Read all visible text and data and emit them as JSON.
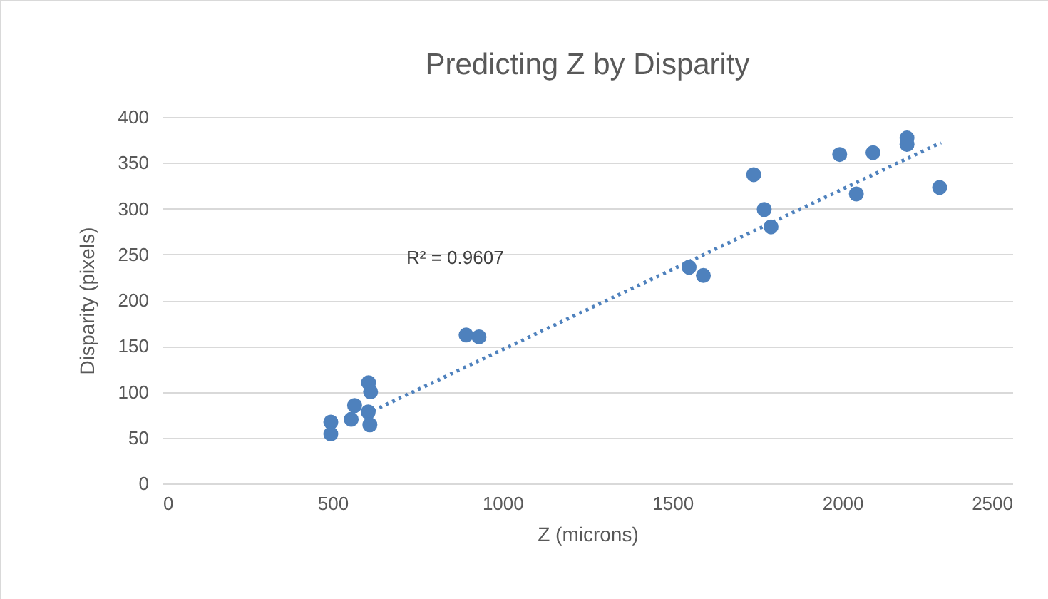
{
  "chart_data": {
    "type": "scatter",
    "title": "Predicting Z by Disparity",
    "xlabel": "Z (microns)",
    "ylabel": "Disparity (pixels)",
    "xlim": [
      0,
      2500
    ],
    "xticks": [
      0,
      500,
      1000,
      1500,
      2000,
      2500
    ],
    "ylim": [
      0,
      400
    ],
    "yticks": [
      0,
      50,
      100,
      150,
      200,
      250,
      300,
      350,
      400
    ],
    "grid": "y",
    "marker": "circle",
    "annotations": [
      "R² = 0.9607"
    ],
    "series": [
      {
        "color": "#4e81bd",
        "x": [
          495,
          495,
          606,
          612,
          565,
          605,
          555,
          610,
          893,
          931,
          1549,
          1591,
          1739,
          1770,
          1790,
          1992,
          2041,
          2090,
          2190,
          2190,
          2286
        ],
        "values": [
          67,
          54,
          110,
          100,
          85,
          78,
          70,
          64,
          162,
          160,
          236,
          227,
          337,
          299,
          280,
          359,
          316,
          361,
          370,
          377,
          323
        ]
      },
      {
        "type": "line",
        "marker": "none",
        "color": "#4e81bd",
        "line_style": "dotted",
        "x": [
          600,
          2290
        ],
        "values": [
          76,
          372
        ]
      }
    ]
  }
}
